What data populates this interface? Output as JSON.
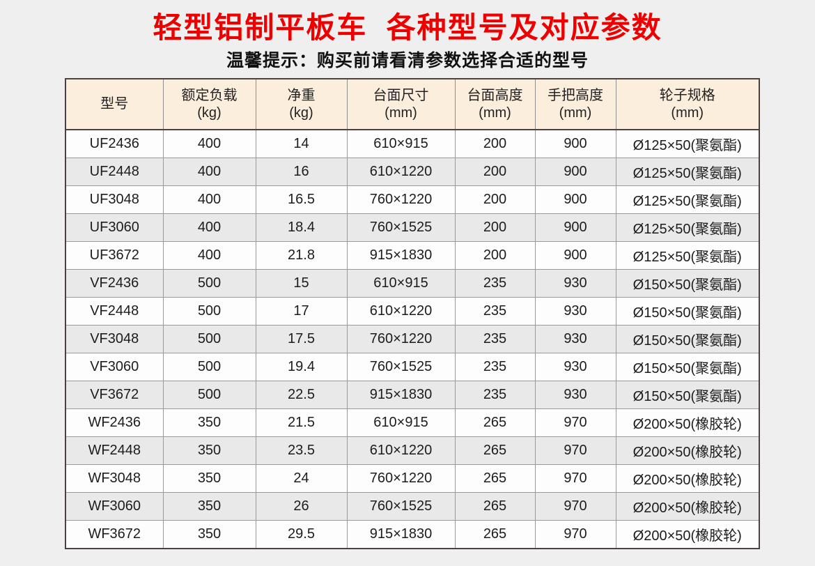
{
  "page": {
    "title": "轻型铝制平板车  各种型号及对应参数",
    "subtitle": "温馨提示：购买前请看清参数选择合适的型号"
  },
  "colors": {
    "title_red": "#ee0000",
    "header_bg": "#fceedd",
    "row_bg": "#fdfdfd",
    "row_alt_bg": "#e9e9e9",
    "inner_border": "#999999",
    "outer_border": "#4a4240",
    "page_bg": "#efefef"
  },
  "table": {
    "columns": [
      {
        "label": "型号",
        "unit": ""
      },
      {
        "label": "额定负载",
        "unit": "(kg)"
      },
      {
        "label": "净重",
        "unit": "(kg)"
      },
      {
        "label": "台面尺寸",
        "unit": "(mm)"
      },
      {
        "label": "台面高度",
        "unit": "(mm)"
      },
      {
        "label": "手把高度",
        "unit": "(mm)"
      },
      {
        "label": "轮子规格",
        "unit": "(mm)"
      }
    ],
    "rows": [
      [
        "UF2436",
        "400",
        "14",
        "610×915",
        "200",
        "900",
        "Ø125×50(聚氨酯)"
      ],
      [
        "UF2448",
        "400",
        "16",
        "610×1220",
        "200",
        "900",
        "Ø125×50(聚氨酯)"
      ],
      [
        "UF3048",
        "400",
        "16.5",
        "760×1220",
        "200",
        "900",
        "Ø125×50(聚氨酯)"
      ],
      [
        "UF3060",
        "400",
        "18.4",
        "760×1525",
        "200",
        "900",
        "Ø125×50(聚氨酯)"
      ],
      [
        "UF3672",
        "400",
        "21.8",
        "915×1830",
        "200",
        "900",
        "Ø125×50(聚氨酯)"
      ],
      [
        "VF2436",
        "500",
        "15",
        "610×915",
        "235",
        "930",
        "Ø150×50(聚氨酯)"
      ],
      [
        "VF2448",
        "500",
        "17",
        "610×1220",
        "235",
        "930",
        "Ø150×50(聚氨酯)"
      ],
      [
        "VF3048",
        "500",
        "17.5",
        "760×1220",
        "235",
        "930",
        "Ø150×50(聚氨酯)"
      ],
      [
        "VF3060",
        "500",
        "19.4",
        "760×1525",
        "235",
        "930",
        "Ø150×50(聚氨酯)"
      ],
      [
        "VF3672",
        "500",
        "22.5",
        "915×1830",
        "235",
        "930",
        "Ø150×50(聚氨酯)"
      ],
      [
        "WF2436",
        "350",
        "21.5",
        "610×915",
        "265",
        "970",
        "Ø200×50(橡胶轮)"
      ],
      [
        "WF2448",
        "350",
        "23.5",
        "610×1220",
        "265",
        "970",
        "Ø200×50(橡胶轮)"
      ],
      [
        "WF3048",
        "350",
        "24",
        "760×1220",
        "265",
        "970",
        "Ø200×50(橡胶轮)"
      ],
      [
        "WF3060",
        "350",
        "26",
        "760×1525",
        "265",
        "970",
        "Ø200×50(橡胶轮)"
      ],
      [
        "WF3672",
        "350",
        "29.5",
        "915×1830",
        "265",
        "970",
        "Ø200×50(橡胶轮)"
      ]
    ]
  }
}
